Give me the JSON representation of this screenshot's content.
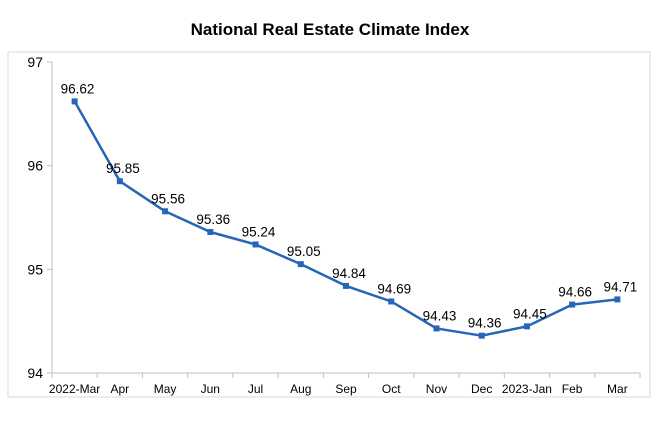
{
  "chart_data": {
    "type": "line",
    "title": "National Real Estate Climate Index",
    "categories": [
      "2022-Mar",
      "Apr",
      "May",
      "Jun",
      "Jul",
      "Aug",
      "Sep",
      "Oct",
      "Nov",
      "Dec",
      "2023-Jan",
      "Feb",
      "Mar"
    ],
    "series": [
      {
        "values": [
          96.62,
          95.85,
          95.56,
          95.36,
          95.24,
          95.05,
          94.84,
          94.69,
          94.43,
          94.36,
          94.45,
          94.66,
          94.71
        ],
        "color": "#2566b8"
      }
    ],
    "data_labels": [
      "96.62",
      "95.85",
      "95.56",
      "95.36",
      "95.24",
      "95.05",
      "94.84",
      "94.69",
      "94.43",
      "94.36",
      "94.45",
      "94.66",
      "94.71"
    ],
    "ylim": [
      94,
      97
    ],
    "yticks": [
      "94",
      "95",
      "96",
      "97"
    ],
    "grid": false,
    "legend": "none",
    "frame_color": "#d9d9d9",
    "axis_color": "#bfbfbf"
  }
}
